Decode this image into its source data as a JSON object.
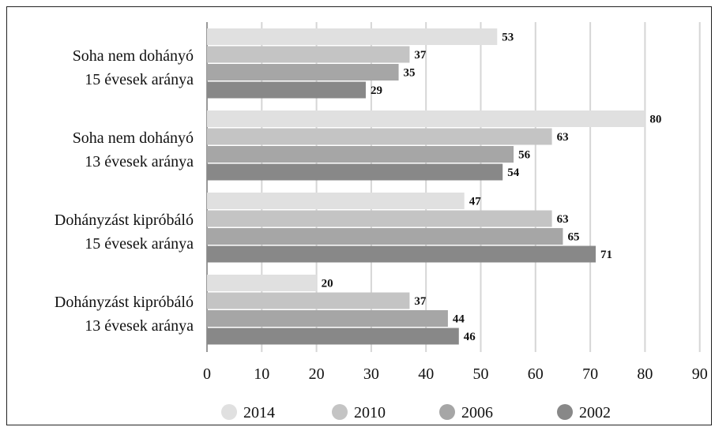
{
  "chart_data": {
    "type": "bar",
    "orientation": "horizontal",
    "title": "",
    "xlabel": "",
    "ylabel": "",
    "xlim": [
      0,
      90
    ],
    "xticks": [
      0,
      10,
      20,
      30,
      40,
      50,
      60,
      70,
      80,
      90
    ],
    "grid": "vertical gridlines on",
    "legend_position": "bottom",
    "categories": [
      {
        "line1": "Soha nem dohányó",
        "line2": "15 évesek aránya"
      },
      {
        "line1": "Soha nem dohányó",
        "line2": "13 évesek aránya"
      },
      {
        "line1": "Dohányzást kipróbáló",
        "line2": "15 évesek aránya"
      },
      {
        "line1": "Dohányzást kipróbáló",
        "line2": "13 évesek aránya"
      }
    ],
    "series": [
      {
        "name": "2014",
        "color": "#e0e0e0",
        "values": [
          53,
          80,
          47,
          20
        ]
      },
      {
        "name": "2010",
        "color": "#c4c4c4",
        "values": [
          37,
          63,
          63,
          37
        ]
      },
      {
        "name": "2006",
        "color": "#a6a6a6",
        "values": [
          35,
          56,
          65,
          44
        ]
      },
      {
        "name": "2002",
        "color": "#888888",
        "values": [
          29,
          54,
          71,
          46
        ]
      }
    ]
  }
}
